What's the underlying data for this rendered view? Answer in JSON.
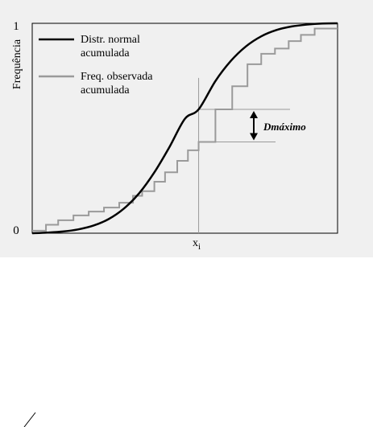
{
  "chart_data": {
    "type": "line",
    "title": "",
    "xlabel": "",
    "ylabel": "Frequência",
    "ylim": [
      0,
      1
    ],
    "ytick_labels": [
      "0",
      "1"
    ],
    "xtick_label": "x",
    "xtick_label_sub": "i",
    "xi": 0.545,
    "d_label": "Dmáximo",
    "legend_position": "top-left",
    "series": [
      {
        "name": "Distr. normal acumulada",
        "color": "#000000",
        "kind": "smooth",
        "x": [
          0.0,
          0.05,
          0.1,
          0.15,
          0.2,
          0.25,
          0.3,
          0.35,
          0.4,
          0.45,
          0.5,
          0.545,
          0.6,
          0.65,
          0.7,
          0.75,
          0.8,
          0.85,
          0.9,
          0.95,
          1.0
        ],
        "y": [
          0.0,
          0.003,
          0.008,
          0.018,
          0.036,
          0.067,
          0.117,
          0.19,
          0.29,
          0.412,
          0.545,
          0.59,
          0.725,
          0.82,
          0.89,
          0.938,
          0.968,
          0.985,
          0.994,
          0.999,
          1.0
        ]
      },
      {
        "name": "Freq. observada acumulada",
        "color": "#9a9a9a",
        "kind": "step",
        "x": [
          0.0,
          0.045,
          0.085,
          0.135,
          0.185,
          0.235,
          0.285,
          0.33,
          0.36,
          0.4,
          0.435,
          0.475,
          0.51,
          0.545,
          0.6,
          0.655,
          0.705,
          0.75,
          0.795,
          0.84,
          0.88,
          0.925
        ],
        "y": [
          0.012,
          0.04,
          0.062,
          0.085,
          0.103,
          0.122,
          0.145,
          0.178,
          0.2,
          0.245,
          0.29,
          0.345,
          0.395,
          0.435,
          0.59,
          0.7,
          0.805,
          0.855,
          0.88,
          0.915,
          0.945,
          0.975
        ]
      }
    ]
  }
}
